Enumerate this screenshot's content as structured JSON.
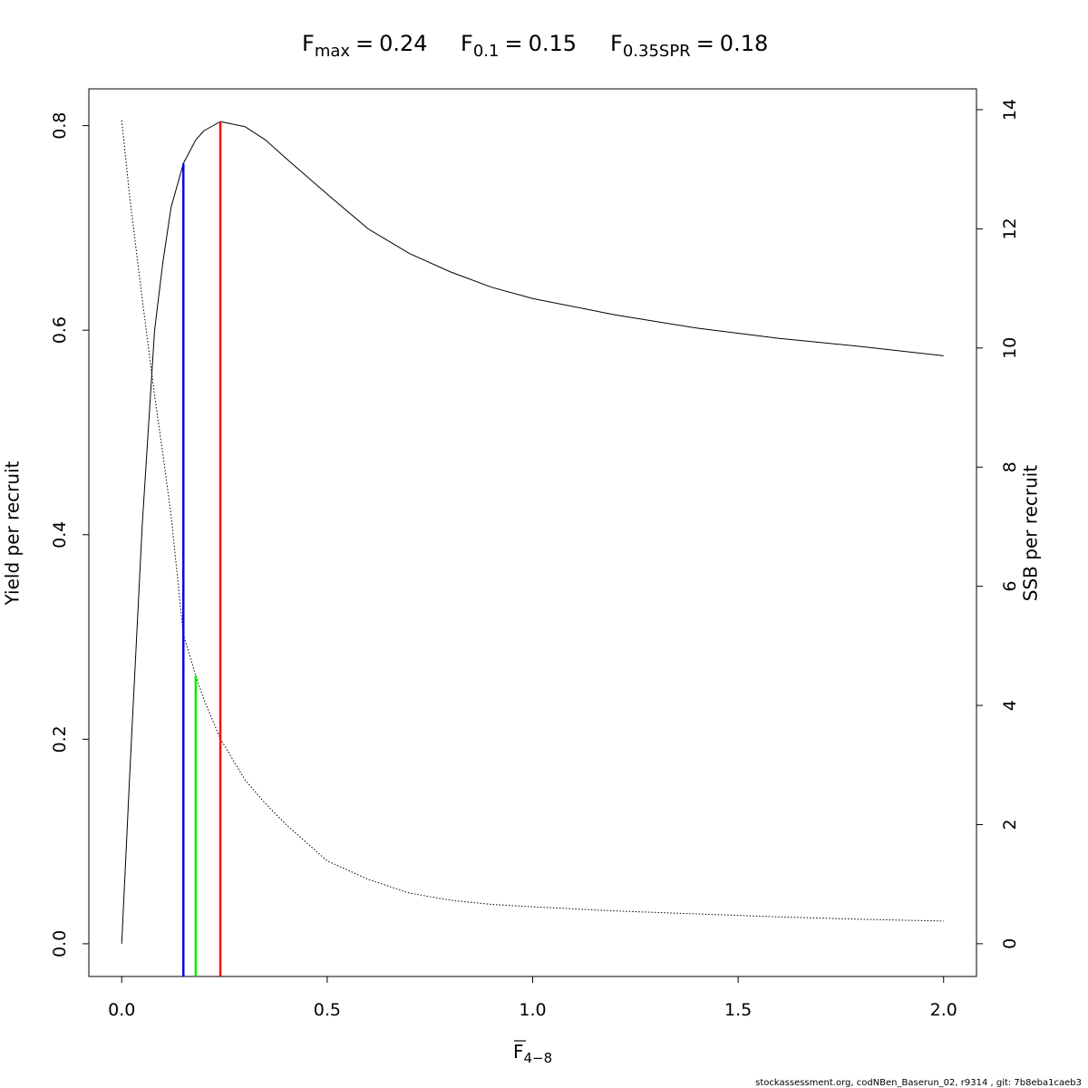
{
  "chart_data": {
    "type": "line",
    "title_parts": [
      {
        "name": "F",
        "sub": "max",
        "sign": "=",
        "value": 0.24,
        "color": "#ff0000",
        "curve": "Yield per recruit"
      },
      {
        "name": "F",
        "sub": "0.1",
        "sign": "=",
        "value": 0.15,
        "color": "#0000ff",
        "curve": "Yield per recruit"
      },
      {
        "name": "F",
        "sub": "0.35SPR",
        "sign": "=",
        "value": 0.18,
        "color": "#00ee00",
        "curve": "SSB per recruit"
      }
    ],
    "xlabel": {
      "name": "F",
      "sub": "4−8"
    },
    "ylabel": "Yield per recruit",
    "y2label": "SSB per recruit",
    "footer": "stockassessment.org, codNBen_Baserun_02, r9314 , git: 7b8eba1caeb3",
    "x": [
      0,
      0.02,
      0.05,
      0.08,
      0.1,
      0.12,
      0.15,
      0.18,
      0.2,
      0.24,
      0.3,
      0.35,
      0.4,
      0.5,
      0.6,
      0.7,
      0.8,
      0.9,
      1.0,
      1.2,
      1.4,
      1.6,
      1.8,
      2.0
    ],
    "series": [
      {
        "name": "Yield per recruit",
        "color": "#000000",
        "style": "solid",
        "values": [
          0,
          0.17,
          0.41,
          0.6,
          0.666,
          0.72,
          0.763,
          0.786,
          0.795,
          0.804,
          0.799,
          0.786,
          0.768,
          0.733,
          0.699,
          0.675,
          0.657,
          0.642,
          0.631,
          0.615,
          0.602,
          0.592,
          0.584,
          0.575
        ]
      },
      {
        "name": "SSB per recruit",
        "color": "#000000",
        "style": "dotted",
        "axis": "y2",
        "values": [
          13.82,
          12.5,
          10.82,
          9.2,
          8.23,
          7.2,
          5.19,
          4.5,
          4.1,
          3.44,
          2.75,
          2.35,
          2.0,
          1.39,
          1.08,
          0.85,
          0.73,
          0.66,
          0.62,
          0.55,
          0.5,
          0.45,
          0.41,
          0.38
        ]
      }
    ],
    "xlim": [
      -0.08,
      2.08
    ],
    "xticks": [
      {
        "value": 0,
        "label": "0.0"
      },
      0.5,
      {
        "value": 1,
        "label": "1.0"
      },
      1.5,
      {
        "value": 2,
        "label": "2.0"
      }
    ],
    "ylim": [
      -0.032,
      0.836
    ],
    "yticks": [
      {
        "value": 0,
        "label": "0.0"
      },
      0.2,
      0.4,
      0.6,
      0.8
    ],
    "y2lim": [
      -0.55,
      14.35
    ],
    "y2ticks": [
      0,
      2,
      4,
      6,
      8,
      10,
      12,
      14
    ]
  }
}
